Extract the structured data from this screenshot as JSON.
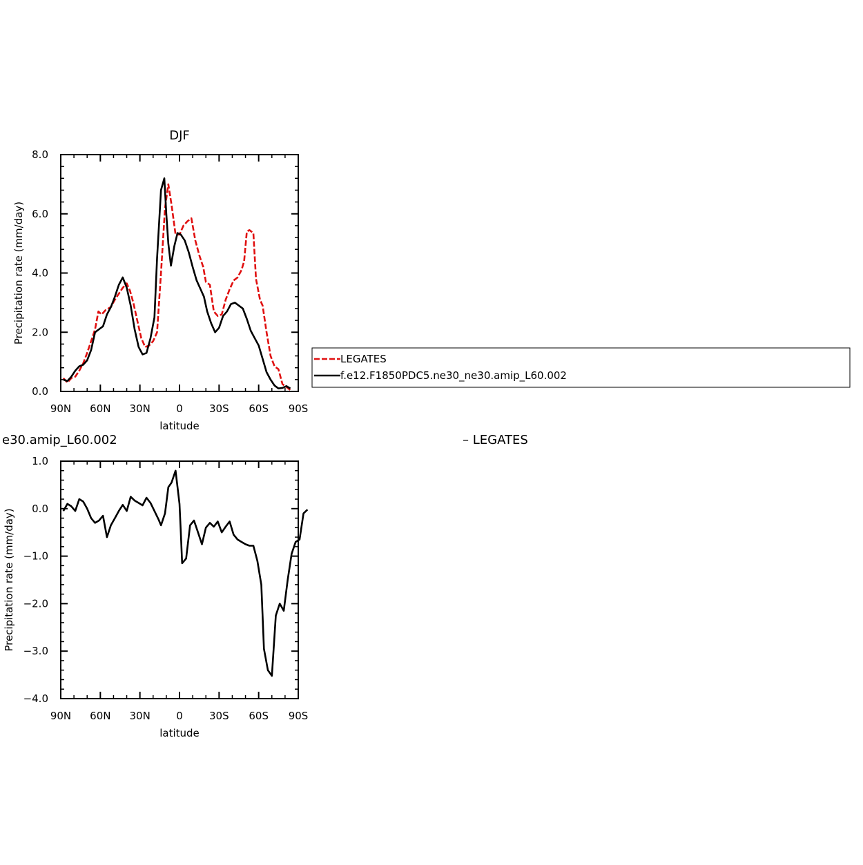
{
  "chart_data": [
    {
      "type": "line",
      "title": "DJF",
      "xlabel": "latitude",
      "ylabel": "Precipitation rate (mm/day)",
      "xlim": [
        90,
        -90
      ],
      "ylim": [
        0,
        8
      ],
      "x_tick_values": [
        90,
        60,
        30,
        0,
        -30,
        -60,
        -90
      ],
      "x_tick_labels": [
        "90N",
        "60N",
        "30N",
        "0",
        "30S",
        "60S",
        "90S"
      ],
      "y_tick_values": [
        0,
        2,
        4,
        6,
        8
      ],
      "y_tick_labels": [
        "0.0",
        "2.0",
        "4.0",
        "6.0",
        "8.0"
      ],
      "legend_position": "right, outside plot",
      "series": [
        {
          "name": "LEGATES",
          "color": "#e01010",
          "style": "dashed",
          "points": [
            [
              88,
              0.45
            ],
            [
              85,
              0.3
            ],
            [
              82,
              0.45
            ],
            [
              79,
              0.5
            ],
            [
              76,
              0.7
            ],
            [
              73,
              0.95
            ],
            [
              70,
              1.3
            ],
            [
              67,
              1.7
            ],
            [
              64,
              2.1
            ],
            [
              61.5,
              2.7
            ],
            [
              59,
              2.6
            ],
            [
              56,
              2.75
            ],
            [
              52,
              2.85
            ],
            [
              49,
              3.1
            ],
            [
              46,
              3.3
            ],
            [
              43,
              3.5
            ],
            [
              40,
              3.65
            ],
            [
              37.5,
              3.4
            ],
            [
              35,
              3.0
            ],
            [
              32,
              2.4
            ],
            [
              29,
              1.8
            ],
            [
              26,
              1.5
            ],
            [
              23,
              1.55
            ],
            [
              20,
              1.7
            ],
            [
              17,
              2.0
            ],
            [
              14,
              4.0
            ],
            [
              11,
              6.2
            ],
            [
              8.5,
              7.0
            ],
            [
              6,
              6.3
            ],
            [
              3,
              5.3
            ],
            [
              0,
              5.3
            ],
            [
              -3,
              5.6
            ],
            [
              -6,
              5.75
            ],
            [
              -9,
              5.85
            ],
            [
              -12,
              5.1
            ],
            [
              -15,
              4.6
            ],
            [
              -18,
              4.2
            ],
            [
              -20,
              3.7
            ],
            [
              -23,
              3.6
            ],
            [
              -26,
              2.7
            ],
            [
              -29,
              2.55
            ],
            [
              -32,
              2.6
            ],
            [
              -35,
              3.1
            ],
            [
              -38,
              3.45
            ],
            [
              -41,
              3.75
            ],
            [
              -44,
              3.85
            ],
            [
              -47,
              4.1
            ],
            [
              -49,
              4.4
            ],
            [
              -51,
              5.4
            ],
            [
              -53,
              5.45
            ],
            [
              -56,
              5.35
            ],
            [
              -58,
              3.8
            ],
            [
              -61,
              3.1
            ],
            [
              -63,
              2.9
            ],
            [
              -66,
              2.0
            ],
            [
              -69,
              1.2
            ],
            [
              -72,
              0.85
            ],
            [
              -75,
              0.75
            ],
            [
              -78,
              0.25
            ],
            [
              -81,
              0.15
            ],
            [
              -84,
              0.05
            ]
          ]
        },
        {
          "name": "f.e12.F1850PDC5.ne30_ne30.amip_L60.002",
          "color": "#000000",
          "style": "solid",
          "points": [
            [
              88,
              0.4
            ],
            [
              85,
              0.35
            ],
            [
              82,
              0.5
            ],
            [
              79,
              0.7
            ],
            [
              76,
              0.85
            ],
            [
              73,
              0.9
            ],
            [
              70,
              1.05
            ],
            [
              67,
              1.4
            ],
            [
              64,
              2.0
            ],
            [
              61,
              2.1
            ],
            [
              58,
              2.2
            ],
            [
              55,
              2.6
            ],
            [
              52,
              2.85
            ],
            [
              49,
              3.2
            ],
            [
              46,
              3.6
            ],
            [
              43,
              3.85
            ],
            [
              40,
              3.5
            ],
            [
              37,
              2.9
            ],
            [
              34,
              2.1
            ],
            [
              31,
              1.5
            ],
            [
              28,
              1.25
            ],
            [
              25,
              1.3
            ],
            [
              22,
              1.8
            ],
            [
              19,
              2.5
            ],
            [
              17,
              4.5
            ],
            [
              14,
              6.8
            ],
            [
              11.5,
              7.2
            ],
            [
              10,
              6.0
            ],
            [
              8.5,
              5.0
            ],
            [
              6.5,
              4.25
            ],
            [
              4,
              4.9
            ],
            [
              1.5,
              5.35
            ],
            [
              -1,
              5.3
            ],
            [
              -4,
              5.1
            ],
            [
              -7,
              4.7
            ],
            [
              -10,
              4.2
            ],
            [
              -13,
              3.75
            ],
            [
              -16,
              3.45
            ],
            [
              -18.5,
              3.2
            ],
            [
              -21,
              2.7
            ],
            [
              -24,
              2.3
            ],
            [
              -27,
              2.0
            ],
            [
              -30,
              2.15
            ],
            [
              -33,
              2.55
            ],
            [
              -36,
              2.7
            ],
            [
              -39,
              2.95
            ],
            [
              -42,
              3.0
            ],
            [
              -45,
              2.9
            ],
            [
              -48,
              2.8
            ],
            [
              -51,
              2.45
            ],
            [
              -54,
              2.05
            ],
            [
              -57,
              1.8
            ],
            [
              -60,
              1.55
            ],
            [
              -63,
              1.1
            ],
            [
              -66,
              0.65
            ],
            [
              -69,
              0.4
            ],
            [
              -72,
              0.2
            ],
            [
              -75,
              0.1
            ],
            [
              -78,
              0.12
            ],
            [
              -81,
              0.18
            ],
            [
              -84,
              0.1
            ]
          ]
        }
      ]
    },
    {
      "type": "line",
      "title": "e30.amip_L60.002",
      "title_right": "– LEGATES",
      "xlabel": "latitude",
      "ylabel": "Precipitation rate (mm/day)",
      "xlim": [
        90,
        -90
      ],
      "ylim": [
        -4,
        1
      ],
      "x_tick_values": [
        90,
        60,
        30,
        0,
        -30,
        -60,
        -90
      ],
      "x_tick_labels": [
        "90N",
        "60N",
        "30N",
        "0",
        "30S",
        "60S",
        "90S"
      ],
      "y_tick_values": [
        1,
        0,
        -1,
        -2,
        -3,
        -4
      ],
      "y_tick_labels": [
        "1.0",
        "0.0",
        "−1.0",
        "−2.0",
        "−3.0",
        "−4.0"
      ],
      "series": [
        {
          "color": "#000000",
          "style": "solid",
          "points": [
            [
              88,
              -0.05
            ],
            [
              85,
              0.1
            ],
            [
              82,
              0.05
            ],
            [
              79,
              -0.05
            ],
            [
              76,
              0.2
            ],
            [
              73,
              0.15
            ],
            [
              70,
              0.0
            ],
            [
              67,
              -0.2
            ],
            [
              64,
              -0.3
            ],
            [
              61,
              -0.25
            ],
            [
              58,
              -0.15
            ],
            [
              55,
              -0.6
            ],
            [
              52,
              -0.35
            ],
            [
              49,
              -0.2
            ],
            [
              46,
              -0.05
            ],
            [
              43,
              0.08
            ],
            [
              40,
              -0.05
            ],
            [
              37,
              0.25
            ],
            [
              34,
              0.17
            ],
            [
              31,
              0.12
            ],
            [
              28,
              0.07
            ],
            [
              25,
              0.23
            ],
            [
              22,
              0.12
            ],
            [
              19,
              -0.05
            ],
            [
              16,
              -0.22
            ],
            [
              14,
              -0.35
            ],
            [
              11,
              -0.1
            ],
            [
              8.5,
              0.45
            ],
            [
              6,
              0.55
            ],
            [
              3,
              0.8
            ],
            [
              0,
              0.1
            ],
            [
              -1,
              -0.5
            ],
            [
              -2,
              -1.15
            ],
            [
              -5,
              -1.05
            ],
            [
              -8,
              -0.35
            ],
            [
              -11,
              -0.25
            ],
            [
              -14,
              -0.5
            ],
            [
              -17,
              -0.75
            ],
            [
              -20,
              -0.4
            ],
            [
              -23,
              -0.3
            ],
            [
              -26,
              -0.38
            ],
            [
              -29,
              -0.27
            ],
            [
              -32,
              -0.5
            ],
            [
              -35,
              -0.38
            ],
            [
              -38,
              -0.27
            ],
            [
              -41,
              -0.55
            ],
            [
              -44,
              -0.65
            ],
            [
              -47,
              -0.7
            ],
            [
              -50,
              -0.75
            ],
            [
              -53,
              -0.78
            ],
            [
              -56,
              -0.78
            ],
            [
              -59,
              -1.1
            ],
            [
              -62,
              -1.6
            ],
            [
              -64,
              -2.95
            ],
            [
              -67,
              -3.4
            ],
            [
              -70,
              -3.52
            ],
            [
              -73,
              -2.25
            ],
            [
              -76,
              -2.0
            ],
            [
              -79,
              -2.15
            ],
            [
              -82,
              -1.5
            ],
            [
              -85,
              -0.95
            ],
            [
              -88,
              -0.7
            ],
            [
              -91,
              -0.65
            ],
            [
              -94,
              -0.1
            ],
            [
              -97,
              -0.02
            ]
          ]
        }
      ]
    }
  ]
}
